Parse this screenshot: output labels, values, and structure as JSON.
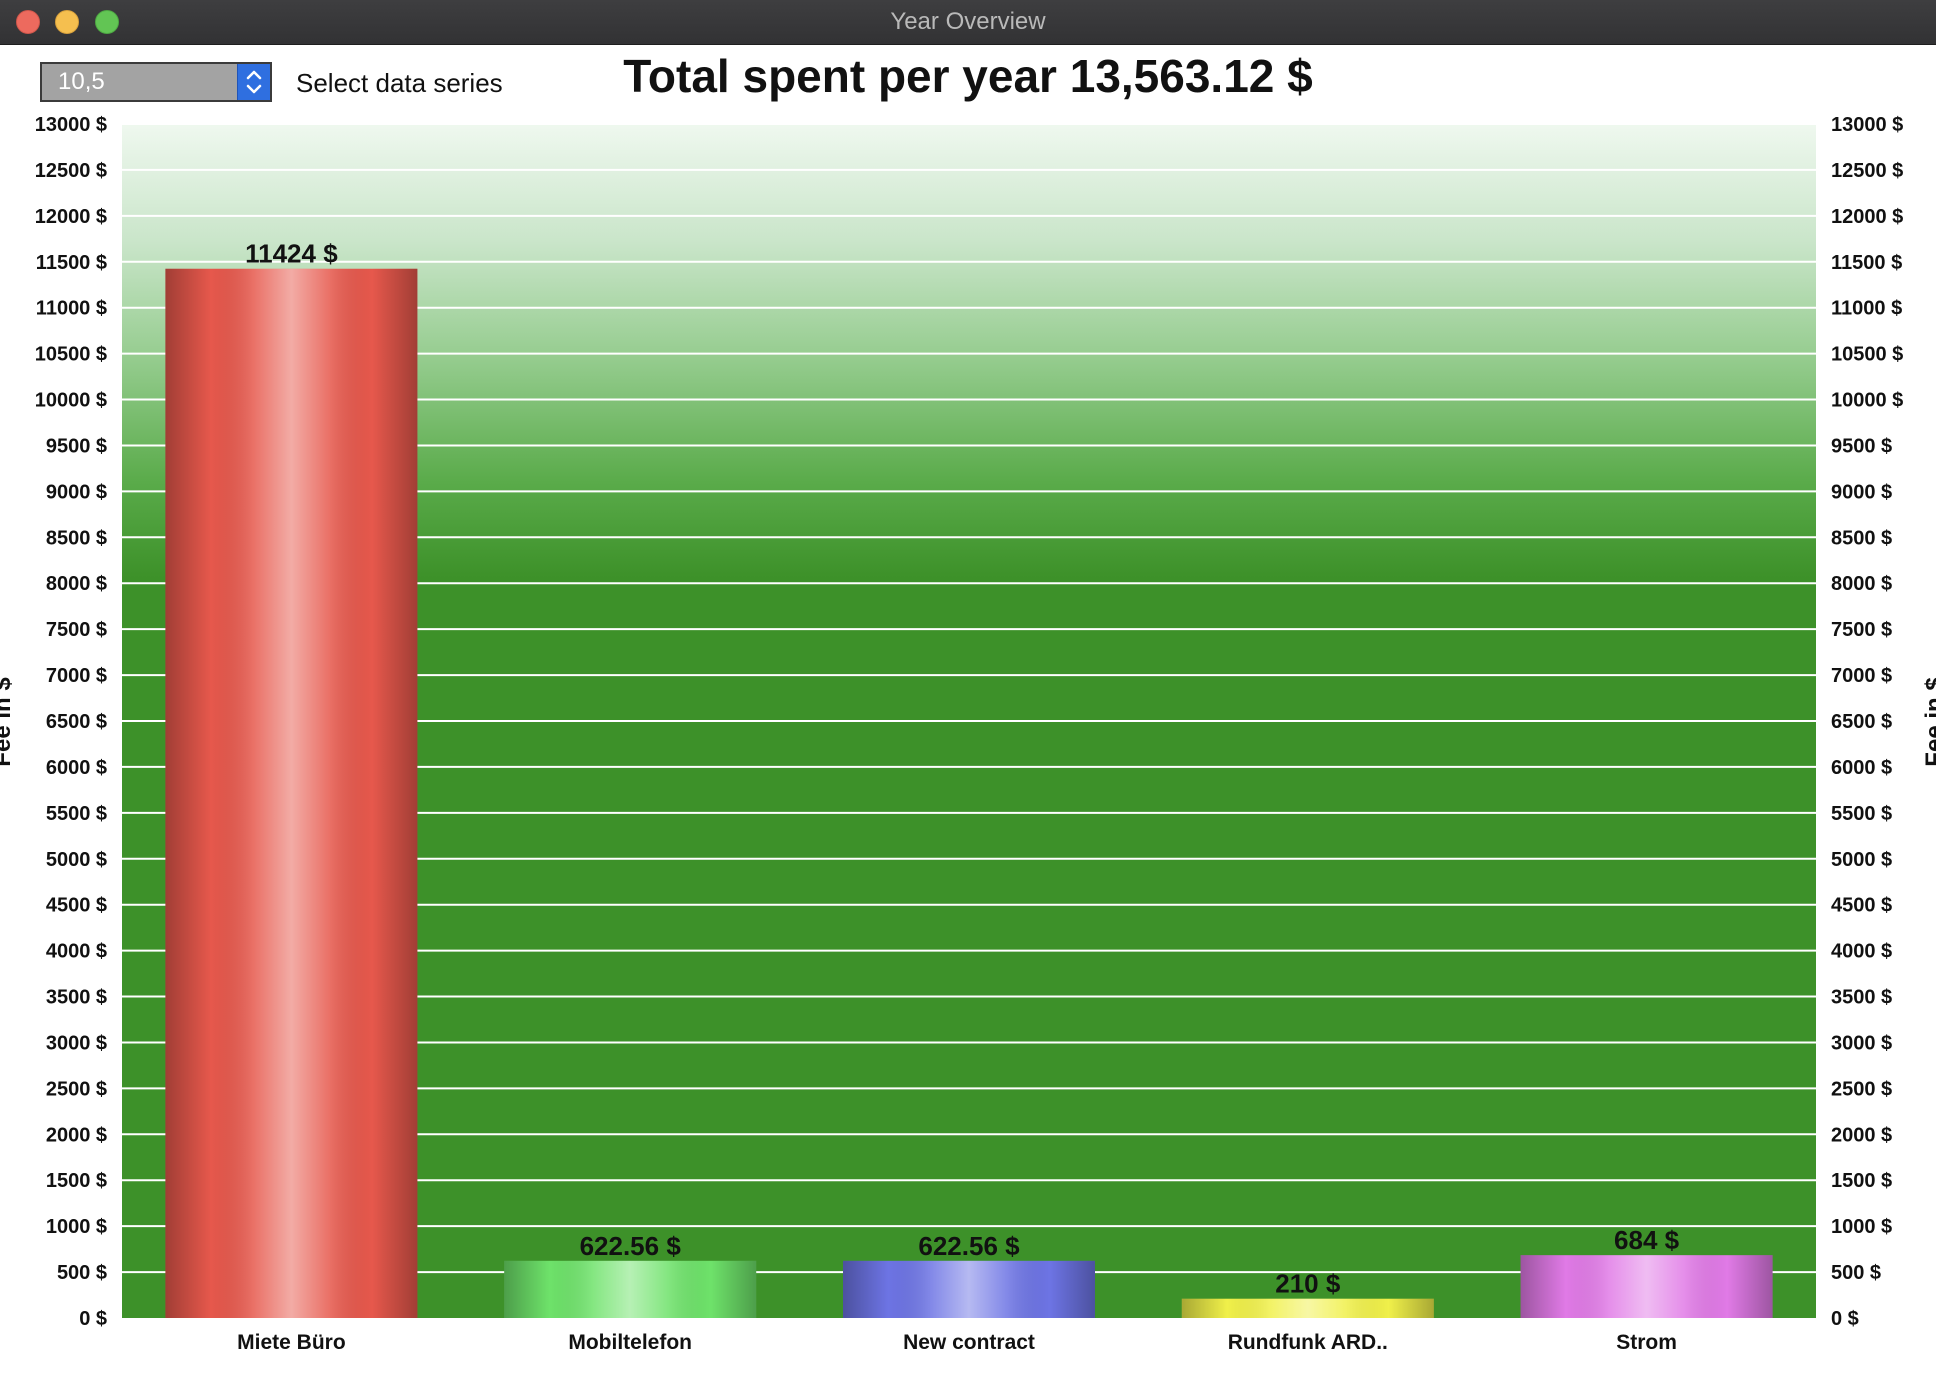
{
  "window": {
    "title": "Year Overview"
  },
  "toolbar": {
    "series_value": "10,5",
    "series_label": "Select data series"
  },
  "colors": {
    "background_top": "#eef7ee",
    "background_main": "#3d9129",
    "gridline": "#ffffff",
    "bar_colors": [
      "#e6584c",
      "#6ee26a",
      "#6d74e4",
      "#f0f04a",
      "#e07ae6"
    ]
  },
  "chart_data": {
    "type": "bar",
    "title": "Total spent per year 13,563.12 $",
    "ylabel": "Fee in $",
    "ylabel_right": "Fee in $",
    "ylim": [
      0,
      13000
    ],
    "yticks": [
      0,
      500,
      1000,
      1500,
      2000,
      2500,
      3000,
      3500,
      4000,
      4500,
      5000,
      5500,
      6000,
      6500,
      7000,
      7500,
      8000,
      8500,
      9000,
      9500,
      10000,
      10500,
      11000,
      11500,
      12000,
      12500,
      13000
    ],
    "ytick_labels": [
      "0 $",
      "500 $",
      "1000 $",
      "1500 $",
      "2000 $",
      "2500 $",
      "3000 $",
      "3500 $",
      "4000 $",
      "4500 $",
      "5000 $",
      "5500 $",
      "6000 $",
      "6500 $",
      "7000 $",
      "7500 $",
      "8000 $",
      "8500 $",
      "9000 $",
      "9500 $",
      "10000 $",
      "10500 $",
      "11000 $",
      "11500 $",
      "12000 $",
      "12500 $",
      "13000 $"
    ],
    "grid": true,
    "categories": [
      "Miete Büro",
      "Mobiltelefon",
      "New contract",
      "Rundfunk ARD..",
      "Strom"
    ],
    "values": [
      11424,
      622.56,
      622.56,
      210,
      684
    ],
    "value_labels": [
      "11424 $",
      "622.56 $",
      "622.56 $",
      "210 $",
      "684 $"
    ]
  }
}
